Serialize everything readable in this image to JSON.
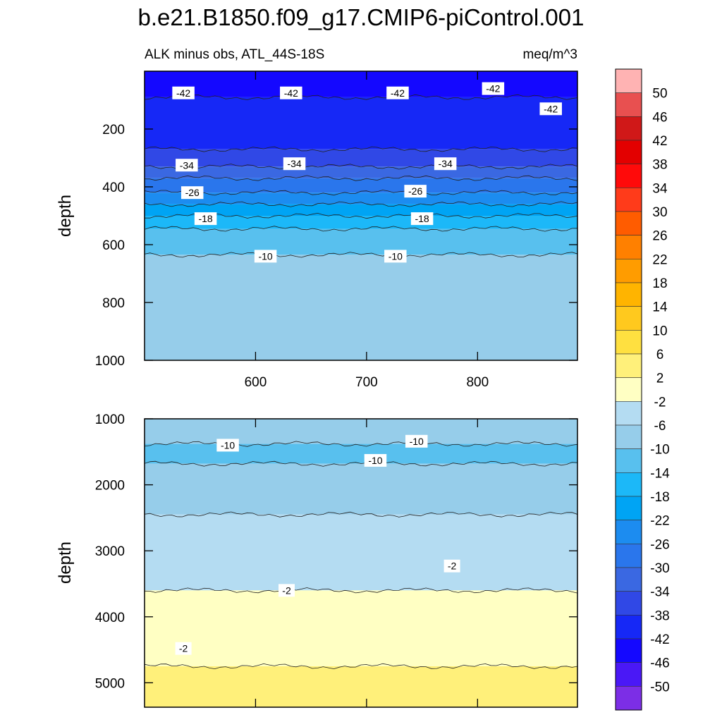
{
  "chart_data": {
    "type": "heatmap",
    "title": "b.e21.B1850.f09_g17.CMIP6-piControl.001",
    "subtitle_left": "ALK minus obs, ATL_44S-18S",
    "subtitle_right": "meq/m^3",
    "ylabel": "depth",
    "xticks": [
      "600",
      "700",
      "800"
    ],
    "xlim": [
      500,
      890
    ],
    "panels": [
      {
        "name": "upper",
        "ylim": [
          0,
          1000
        ],
        "yticks": [
          "200",
          "400",
          "600",
          "800",
          "1000"
        ],
        "ytick_values": [
          200,
          400,
          600,
          800,
          1000
        ],
        "bands": [
          {
            "from": 0,
            "to": 90,
            "value": -44
          },
          {
            "from": 90,
            "to": 270,
            "value": -40
          },
          {
            "from": 270,
            "to": 330,
            "value": -36
          },
          {
            "from": 330,
            "to": 370,
            "value": -32
          },
          {
            "from": 370,
            "to": 420,
            "value": -28
          },
          {
            "from": 420,
            "to": 460,
            "value": -24
          },
          {
            "from": 460,
            "to": 500,
            "value": -20
          },
          {
            "from": 500,
            "to": 545,
            "value": -16
          },
          {
            "from": 545,
            "to": 635,
            "value": -12
          },
          {
            "from": 635,
            "to": 1000,
            "value": -8
          }
        ],
        "contour_labels": [
          {
            "text": "-42",
            "x": 535,
            "depth": 75
          },
          {
            "text": "-42",
            "x": 632,
            "depth": 75
          },
          {
            "text": "-42",
            "x": 728,
            "depth": 75
          },
          {
            "text": "-42",
            "x": 814,
            "depth": 60
          },
          {
            "text": "-42",
            "x": 866,
            "depth": 130
          },
          {
            "text": "-34",
            "x": 538,
            "depth": 325
          },
          {
            "text": "-34",
            "x": 635,
            "depth": 320
          },
          {
            "text": "-34",
            "x": 771,
            "depth": 320
          },
          {
            "text": "-26",
            "x": 543,
            "depth": 420
          },
          {
            "text": "-26",
            "x": 744,
            "depth": 415
          },
          {
            "text": "-18",
            "x": 555,
            "depth": 510
          },
          {
            "text": "-18",
            "x": 750,
            "depth": 510
          },
          {
            "text": "-10",
            "x": 609,
            "depth": 640
          },
          {
            "text": "-10",
            "x": 726,
            "depth": 640
          }
        ]
      },
      {
        "name": "lower",
        "ylim": [
          1000,
          5370
        ],
        "yticks": [
          "1000",
          "2000",
          "3000",
          "4000",
          "5000"
        ],
        "ytick_values": [
          1000,
          2000,
          3000,
          4000,
          5000
        ],
        "bands": [
          {
            "from": 1000,
            "to": 1380,
            "value": -8
          },
          {
            "from": 1380,
            "to": 1680,
            "value": -12
          },
          {
            "from": 1680,
            "to": 2450,
            "value": -8
          },
          {
            "from": 2450,
            "to": 3600,
            "value": -4
          },
          {
            "from": 3600,
            "to": 4750,
            "value": 0
          },
          {
            "from": 4750,
            "to": 5370,
            "value": 4
          }
        ],
        "contour_labels": [
          {
            "text": "-10",
            "x": 575,
            "depth": 1400
          },
          {
            "text": "-10",
            "x": 745,
            "depth": 1340
          },
          {
            "text": "-10",
            "x": 708,
            "depth": 1630
          },
          {
            "text": "-2",
            "x": 777,
            "depth": 3230
          },
          {
            "text": "-2",
            "x": 628,
            "depth": 3600
          },
          {
            "text": "-2",
            "x": 535,
            "depth": 4480
          }
        ]
      }
    ],
    "colorbar": {
      "labels": [
        "50",
        "46",
        "42",
        "38",
        "34",
        "30",
        "26",
        "22",
        "18",
        "14",
        "10",
        "6",
        "2",
        "-2",
        "-6",
        "-10",
        "-14",
        "-18",
        "-22",
        "-26",
        "-30",
        "-34",
        "-38",
        "-42",
        "-46",
        "-50"
      ],
      "colors": [
        "#ffb3b3",
        "#e85050",
        "#d01818",
        "#e30000",
        "#ff0a0a",
        "#ff3b1a",
        "#ff5c00",
        "#ff8000",
        "#ff9c00",
        "#ffb400",
        "#ffc91e",
        "#ffe040",
        "#fff07a",
        "#ffffc3",
        "#b4dcf2",
        "#96cdea",
        "#58c0ee",
        "#1cb8f8",
        "#00a4f4",
        "#1c8cf0",
        "#2a76ec",
        "#3a68e2",
        "#3048e6",
        "#1628f6",
        "#1408ff",
        "#4a18f6",
        "#7c2ee6"
      ]
    }
  }
}
